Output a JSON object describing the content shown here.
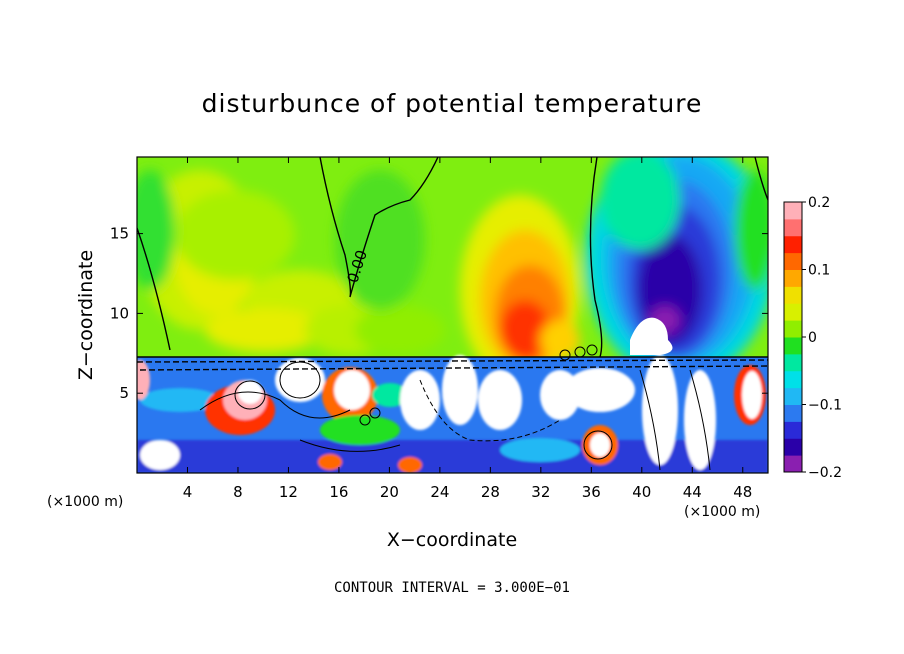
{
  "chart_data": {
    "type": "heatmap",
    "title": "disturbunce of potential temperature",
    "xlabel": "X−coordinate",
    "ylabel": "Z−coordinate",
    "x_unit": "(×1000 m)",
    "x_ticks": [
      4,
      8,
      12,
      16,
      20,
      24,
      28,
      32,
      36,
      40,
      44,
      48
    ],
    "y_ticks": [
      5,
      10,
      15
    ],
    "xlim": [
      0,
      50
    ],
    "ylim": [
      0,
      19.8
    ],
    "colorbar": {
      "range": [
        -0.2,
        0.2
      ],
      "tick_labels": [
        "0.2",
        "0.1",
        "0",
        "−0.1",
        "−0.2"
      ],
      "tick_values": [
        0.2,
        0.1,
        0,
        -0.1,
        -0.2
      ],
      "colors": [
        "#8a1fb0",
        "#2a00a8",
        "#2a2ad8",
        "#2c7af0",
        "#20b8f4",
        "#00e0e8",
        "#00e8a0",
        "#20e020",
        "#90ee00",
        "#d8f000",
        "#f0e000",
        "#ffa800",
        "#ff6800",
        "#ff2000",
        "#ff7070",
        "#ffb0b8"
      ]
    },
    "contour_label": "0.00",
    "contour_interval_text": "CONTOUR INTERVAL = 3.000E−01"
  }
}
